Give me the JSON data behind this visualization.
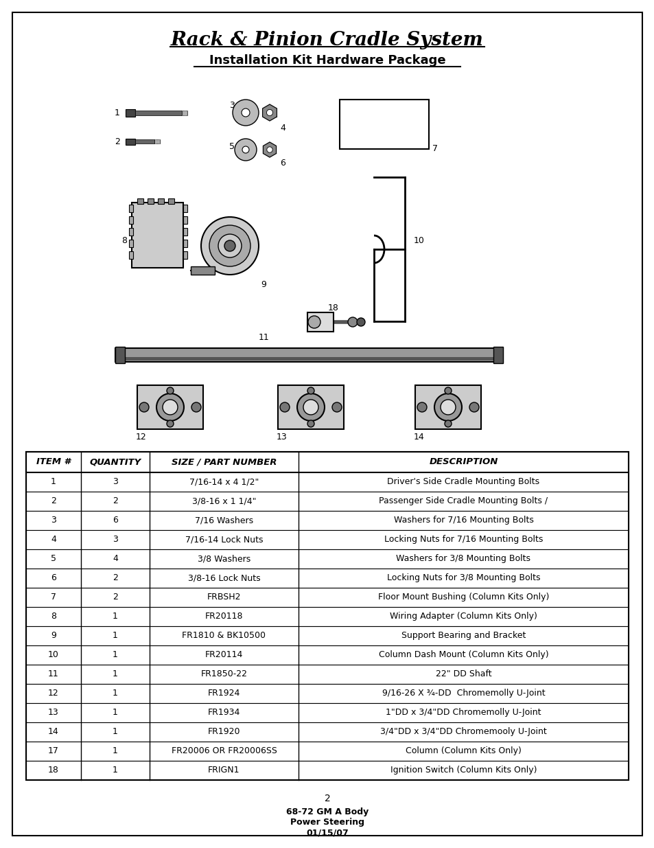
{
  "title_italic": "Rack & Pinion Cradle System",
  "title_sub": "Installation Kit Hardware Package",
  "page_num": "2",
  "footer_line1": "68-72 GM A Body",
  "footer_line2": "Power Steering",
  "footer_line3": "01/15/07",
  "bg_color": "#ffffff",
  "border_color": "#000000",
  "table_headers": [
    "ITEM #",
    "QUANTITY",
    "SIZE / PART NUMBER",
    "DESCRIPTION"
  ],
  "table_rows": [
    [
      "1",
      "3",
      "7/16-14 x 4 1/2\"",
      "Driver's Side Cradle Mounting Bolts"
    ],
    [
      "2",
      "2",
      "3/8-16 x 1 1/4\"",
      "Passenger Side Cradle Mounting Bolts /"
    ],
    [
      "3",
      "6",
      "7/16 Washers",
      "Washers for 7/16 Mounting Bolts"
    ],
    [
      "4",
      "3",
      "7/16-14 Lock Nuts",
      "Locking Nuts for 7/16 Mounting Bolts"
    ],
    [
      "5",
      "4",
      "3/8 Washers",
      "Washers for 3/8 Mounting Bolts"
    ],
    [
      "6",
      "2",
      "3/8-16 Lock Nuts",
      "Locking Nuts for 3/8 Mounting Bolts"
    ],
    [
      "7",
      "2",
      "FRBSH2",
      "Floor Mount Bushing (Column Kits Only)"
    ],
    [
      "8",
      "1",
      "FR20118",
      "Wiring Adapter (Column Kits Only)"
    ],
    [
      "9",
      "1",
      "FR1810 & BK10500",
      "Support Bearing and Bracket"
    ],
    [
      "10",
      "1",
      "FR20114",
      "Column Dash Mount (Column Kits Only)"
    ],
    [
      "11",
      "1",
      "FR1850-22",
      "22\" DD Shaft"
    ],
    [
      "12",
      "1",
      "FR1924",
      "9/16-26 X ¾-DD  Chromemolly U-Joint"
    ],
    [
      "13",
      "1",
      "FR1934",
      "1\"DD x 3/4\"DD Chromemolly U-Joint"
    ],
    [
      "14",
      "1",
      "FR1920",
      "3/4\"DD x 3/4\"DD Chromemooly U-Joint"
    ],
    [
      "17",
      "1",
      "FR20006 OR FR20006SS",
      "Column (Column Kits Only)"
    ],
    [
      "18",
      "1",
      "FRIGN1",
      "Ignition Switch (Column Kits Only)"
    ]
  ]
}
